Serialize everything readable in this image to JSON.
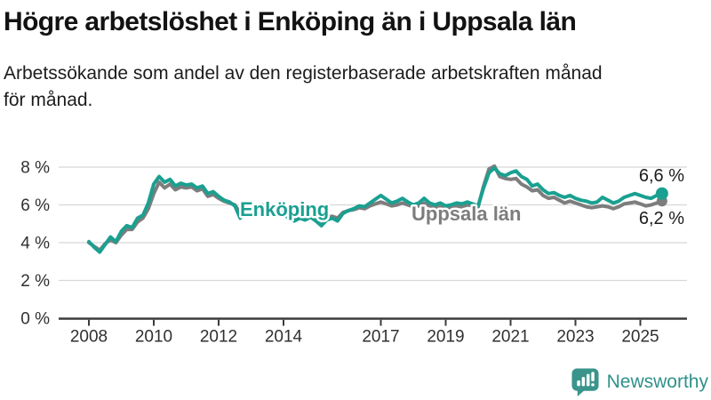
{
  "title": "Högre arbetslöshet i Enköping än i Uppsala län",
  "subtitle": "Arbetssökande som andel av den registerbaserade arbetskraften månad för månad.",
  "chart_data": {
    "type": "line",
    "unit_suffix": " %",
    "grid": true,
    "legend": "inline-labels",
    "x_range": [
      2007.85,
      2025.9
    ],
    "y_range": [
      0,
      8.6
    ],
    "x_tick_years": [
      2008,
      2010,
      2012,
      2014,
      2017,
      2019,
      2021,
      2023,
      2025
    ],
    "x_tick_labels": [
      "2008",
      "2010",
      "2012",
      "2014",
      "2017",
      "2019",
      "2021",
      "2023",
      "2025"
    ],
    "y_ticks": [
      {
        "value": 0,
        "label": "0 %"
      },
      {
        "value": 2,
        "label": "2 %"
      },
      {
        "value": 4,
        "label": "4 %"
      },
      {
        "value": 6,
        "label": "6 %"
      },
      {
        "value": 8,
        "label": "8 %"
      }
    ],
    "series": [
      {
        "name": "Enköping",
        "color": "#1aa091",
        "end_label": "6,6 %",
        "end_value": 6.6,
        "x_start": 2008.0,
        "x_step_years": 0.16667,
        "values": [
          4.05,
          3.75,
          3.5,
          3.9,
          4.3,
          4.05,
          4.6,
          4.9,
          4.8,
          5.3,
          5.45,
          6.1,
          7.1,
          7.5,
          7.2,
          7.35,
          7.0,
          7.15,
          7.05,
          7.1,
          6.9,
          7.0,
          6.6,
          6.7,
          6.45,
          6.25,
          6.15,
          5.95,
          5.3,
          5.75,
          6.0,
          5.9,
          6.0,
          5.85,
          5.75,
          5.8,
          5.6,
          5.25,
          5.15,
          5.3,
          5.2,
          5.35,
          5.15,
          4.9,
          5.2,
          5.3,
          5.15,
          5.55,
          5.7,
          5.8,
          5.95,
          5.9,
          6.1,
          6.3,
          6.5,
          6.3,
          6.1,
          6.2,
          6.35,
          6.15,
          6.0,
          6.1,
          6.35,
          6.1,
          6.0,
          6.1,
          5.95,
          6.0,
          6.1,
          6.05,
          6.15,
          6.05,
          5.95,
          6.9,
          7.7,
          7.95,
          7.65,
          7.55,
          7.7,
          7.8,
          7.5,
          7.35,
          7.0,
          7.1,
          6.8,
          6.6,
          6.65,
          6.5,
          6.4,
          6.5,
          6.35,
          6.25,
          6.2,
          6.1,
          6.15,
          6.4,
          6.25,
          6.1,
          6.2,
          6.4,
          6.5,
          6.6,
          6.5,
          6.4,
          6.35,
          6.5,
          6.6
        ]
      },
      {
        "name": "Uppsala län",
        "color": "#7d7d7d",
        "end_label": "6,2 %",
        "end_value": 6.2,
        "x_start": 2008.0,
        "x_step_years": 0.16667,
        "values": [
          4.0,
          3.8,
          3.6,
          3.95,
          4.15,
          4.0,
          4.4,
          4.7,
          4.7,
          5.1,
          5.3,
          5.8,
          6.6,
          7.2,
          6.9,
          7.1,
          6.8,
          6.95,
          6.9,
          6.95,
          6.75,
          6.85,
          6.45,
          6.55,
          6.35,
          6.2,
          6.1,
          6.0,
          5.55,
          5.8,
          5.95,
          5.85,
          5.95,
          5.8,
          5.7,
          5.75,
          5.6,
          5.4,
          5.3,
          5.4,
          5.35,
          5.45,
          5.3,
          5.15,
          5.35,
          5.4,
          5.3,
          5.6,
          5.7,
          5.75,
          5.85,
          5.8,
          5.95,
          6.05,
          6.15,
          6.05,
          5.95,
          6.0,
          6.1,
          6.0,
          5.9,
          5.95,
          6.1,
          5.95,
          5.85,
          5.9,
          5.8,
          5.85,
          5.95,
          5.9,
          6.0,
          5.95,
          5.9,
          7.0,
          7.9,
          8.05,
          7.5,
          7.4,
          7.35,
          7.4,
          7.1,
          6.95,
          6.75,
          6.8,
          6.5,
          6.35,
          6.4,
          6.25,
          6.1,
          6.2,
          6.1,
          6.0,
          5.9,
          5.85,
          5.9,
          5.95,
          5.9,
          5.8,
          5.9,
          6.05,
          6.1,
          6.15,
          6.05,
          5.95,
          6.0,
          6.1,
          6.2
        ]
      }
    ]
  },
  "footer": {
    "brand": "Newsworthy"
  },
  "colors": {
    "accent_teal": "#1aa091",
    "series_gray": "#7d7d7d",
    "brand_teal": "#2f918a",
    "grid": "#d8d8d8",
    "axis": "#3b3b3b",
    "text": "#1c1c1c"
  }
}
